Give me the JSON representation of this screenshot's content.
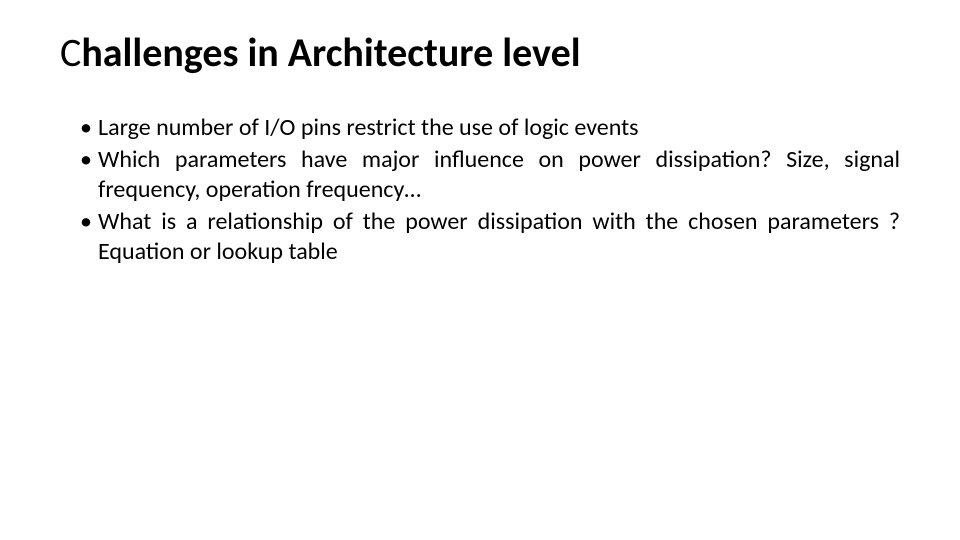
{
  "slide": {
    "title_prefix": "C",
    "title_part1": "hallenges ",
    "title_part2": "in Architecture level",
    "bullets": [
      "Large number of I/O pins restrict the use of logic events",
      "Which parameters have major influence on power dissipation? Size, signal frequency, operation frequency…",
      "What is a relationship of the power dissipation with the chosen parameters ? Equation or lookup table"
    ]
  },
  "styling": {
    "background_color": "#ffffff",
    "text_color": "#000000",
    "title_fontsize": 40,
    "body_fontsize": 24,
    "font_family": "Calibri"
  }
}
